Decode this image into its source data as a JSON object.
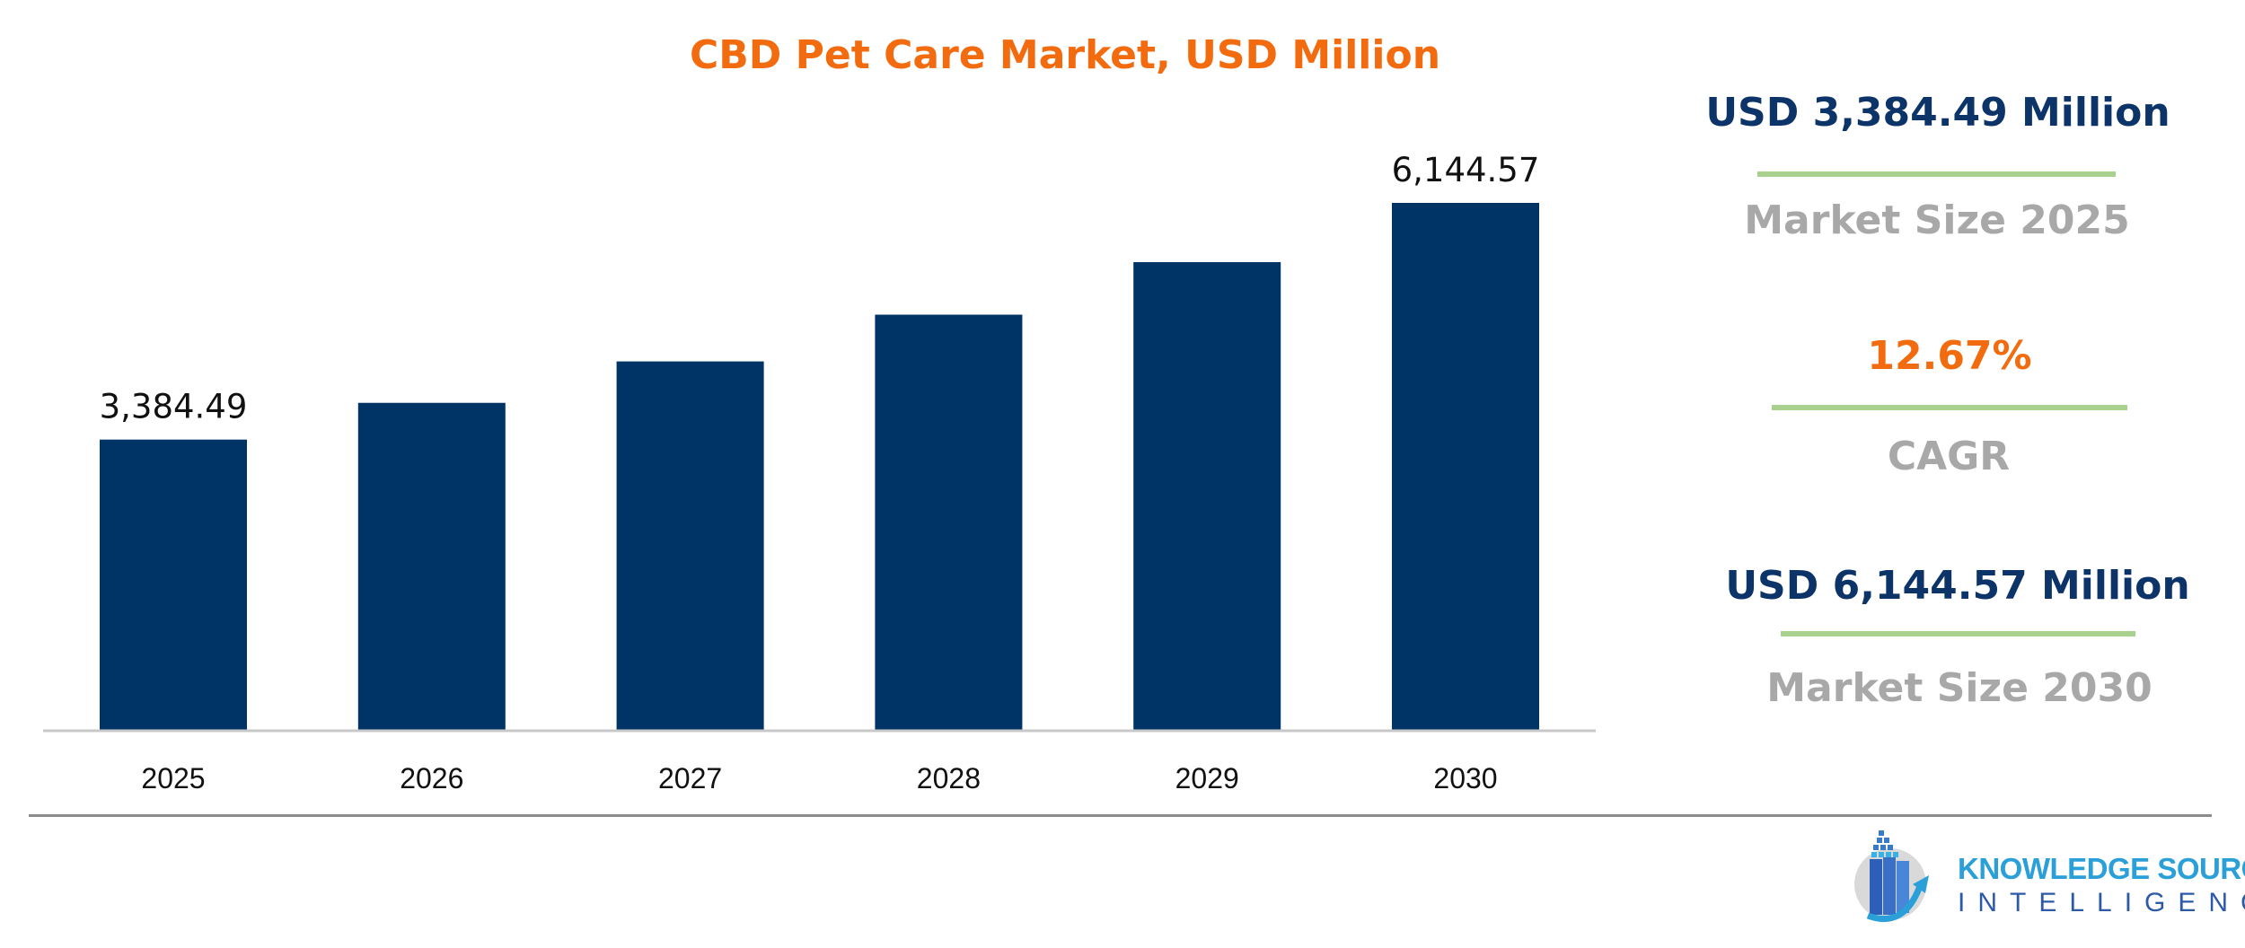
{
  "colors": {
    "bar": "#003366",
    "title": "#f26b0f",
    "navy": "#0d3468",
    "gray": "#a8a8a8",
    "green": "#a9d18e",
    "axis": "#c8c8c8",
    "label": "#111111"
  },
  "chart_data": {
    "type": "bar",
    "title": "CBD Pet Care Market, USD Million",
    "categories": [
      "2025",
      "2026",
      "2027",
      "2028",
      "2029",
      "2030"
    ],
    "values": [
      3384.49,
      3813,
      4296,
      4841,
      5454,
      6144.57
    ],
    "data_labels": [
      "3,384.49",
      "",
      "",
      "",
      "",
      "6,144.57"
    ],
    "xlabel": "",
    "ylabel": "",
    "ylim": [
      0,
      6144.57
    ],
    "grid": false,
    "legend": "none"
  },
  "stats": {
    "start_value": "USD 3,384.49 Million",
    "start_label": "Market Size 2025",
    "cagr_value": "12.67%",
    "cagr_label": "CAGR",
    "end_value": "USD 6,144.57 Million",
    "end_label": "Market Size 2030"
  },
  "logo": {
    "line1": "KNOWLEDGE SOURCING",
    "line2": "INTELLIGENCE",
    "icon": "ship-chart-arrow-logo"
  }
}
